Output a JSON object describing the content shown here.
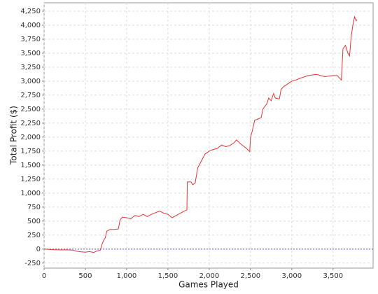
{
  "chart_data": {
    "type": "line",
    "x_label": "Games Played",
    "y_label": "Total Profit ($)",
    "xlim": [
      0,
      3985
    ],
    "ylim": [
      -340,
      4400
    ],
    "xticks": [
      0,
      500,
      {
        "value": 1000,
        "label": "1,000"
      },
      {
        "value": 1500,
        "label": "1,500"
      },
      {
        "value": 2000,
        "label": "2,000"
      },
      {
        "value": 2500,
        "label": "2,500"
      },
      {
        "value": 3000,
        "label": "3,000"
      },
      {
        "value": 3500,
        "label": "3,500"
      }
    ],
    "yticks": [
      -250,
      0,
      250,
      500,
      750,
      {
        "value": 1000,
        "label": "1,000"
      },
      {
        "value": 1250,
        "label": "1,250"
      },
      {
        "value": 1500,
        "label": "1,500"
      },
      {
        "value": 1750,
        "label": "1,750"
      },
      {
        "value": 2000,
        "label": "2,000"
      },
      {
        "value": 2250,
        "label": "2,250"
      },
      {
        "value": 2500,
        "label": "2,500"
      },
      {
        "value": 2750,
        "label": "2,750"
      },
      {
        "value": 3000,
        "label": "3,000"
      },
      {
        "value": 3250,
        "label": "3,250"
      },
      {
        "value": 3500,
        "label": "3,500"
      },
      {
        "value": 3750,
        "label": "3,750"
      },
      {
        "value": 4000,
        "label": "4,000"
      },
      {
        "value": 4250,
        "label": "4,250"
      }
    ],
    "grid": true,
    "reference_line": {
      "value": 0,
      "color": "#5555ff"
    },
    "series": [
      {
        "color": "#ee3333",
        "x": [
          0,
          100,
          200,
          300,
          350,
          400,
          450,
          500,
          550,
          600,
          650,
          680,
          700,
          720,
          740,
          760,
          800,
          850,
          900,
          920,
          950,
          1000,
          1050,
          1100,
          1150,
          1200,
          1250,
          1300,
          1350,
          1400,
          1450,
          1500,
          1550,
          1600,
          1650,
          1700,
          1730,
          1735,
          1780,
          1800,
          1830,
          1860,
          1900,
          1950,
          2000,
          2050,
          2100,
          2150,
          2200,
          2250,
          2300,
          2330,
          2380,
          2450,
          2490,
          2500,
          2520,
          2550,
          2600,
          2630,
          2650,
          2700,
          2720,
          2750,
          2780,
          2800,
          2850,
          2870,
          2900,
          2950,
          3000,
          3050,
          3100,
          3200,
          3300,
          3400,
          3500,
          3550,
          3600,
          3620,
          3650,
          3680,
          3700,
          3720,
          3740,
          3760,
          3780,
          3790
        ],
        "values": [
          0,
          -10,
          -15,
          -15,
          -20,
          -40,
          -50,
          -55,
          -45,
          -60,
          -30,
          -20,
          80,
          150,
          200,
          320,
          350,
          350,
          360,
          520,
          570,
          560,
          540,
          600,
          580,
          620,
          580,
          620,
          650,
          680,
          640,
          620,
          560,
          600,
          640,
          680,
          700,
          1200,
          1200,
          1150,
          1180,
          1450,
          1560,
          1700,
          1750,
          1780,
          1800,
          1860,
          1830,
          1850,
          1900,
          1950,
          1880,
          1800,
          1740,
          2000,
          2100,
          2300,
          2330,
          2350,
          2500,
          2600,
          2700,
          2650,
          2780,
          2700,
          2680,
          2850,
          2900,
          2950,
          3000,
          3020,
          3050,
          3100,
          3120,
          3080,
          3100,
          3100,
          3020,
          3580,
          3640,
          3500,
          3450,
          3800,
          4000,
          4150,
          4080,
          4100
        ]
      }
    ]
  }
}
